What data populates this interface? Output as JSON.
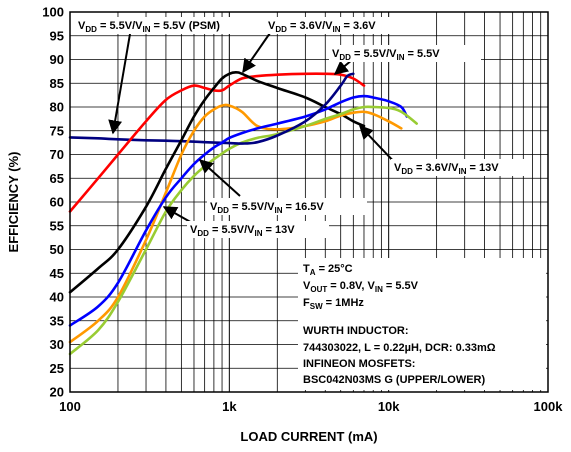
{
  "chart_data": {
    "type": "line",
    "xscale": "log",
    "xlabel": "LOAD CURRENT (mA)",
    "ylabel": "EFFICIENCY (%)",
    "xlim": [
      100,
      100000
    ],
    "ylim": [
      20,
      100
    ],
    "x_tick_labels": [
      "100",
      "1k",
      "10k",
      "100k"
    ],
    "y_ticks": [
      20,
      25,
      30,
      35,
      40,
      45,
      50,
      55,
      60,
      65,
      70,
      75,
      80,
      85,
      90,
      95,
      100
    ],
    "grid": true,
    "series": [
      {
        "label_key": "psm",
        "color": "#000080",
        "x": [
          100,
          150,
          200,
          300,
          400,
          500,
          700,
          1000
        ],
        "y": [
          73.6,
          73.4,
          73.2,
          73.0,
          72.9,
          72.8,
          72.6,
          72.4
        ]
      },
      {
        "label_key": "vin55",
        "color": "#ff0000",
        "x": [
          100,
          150,
          200,
          300,
          400,
          500,
          600,
          700,
          800,
          900,
          1000,
          1200,
          1500,
          2000,
          3000,
          4000,
          5000,
          6000,
          7000
        ],
        "y": [
          58,
          65,
          70,
          77,
          81.5,
          83.5,
          84.5,
          84.0,
          83.5,
          83.5,
          84.5,
          86.0,
          86.5,
          86.8,
          87.0,
          87.0,
          86.8,
          86.0,
          84.5
        ]
      },
      {
        "label_key": "vin36",
        "color": "#000000",
        "x": [
          100,
          150,
          200,
          300,
          400,
          500,
          600,
          700,
          800,
          900,
          1000,
          1100,
          1200,
          1500,
          2000,
          3000,
          4000,
          5000,
          6000,
          7000
        ],
        "y": [
          41,
          46,
          50,
          59,
          67,
          73,
          78,
          81.5,
          84,
          86,
          87,
          87.3,
          87.0,
          85.5,
          84,
          82,
          80,
          78.5,
          77,
          76
        ]
      },
      {
        "label_key": "vin5_5_36",
        "color": "#ff9900",
        "x": [
          100,
          150,
          200,
          300,
          400,
          500,
          600,
          700,
          800,
          900,
          1000,
          1200,
          1500,
          2000,
          3000,
          4000,
          5000,
          6000,
          7000,
          8000,
          10000,
          12000
        ],
        "y": [
          30.5,
          35,
          40,
          52,
          62,
          70,
          75,
          78,
          79.5,
          80.3,
          80.3,
          79,
          76,
          75.3,
          76,
          77,
          78.2,
          78.8,
          79.0,
          78.5,
          77,
          75.5
        ]
      },
      {
        "label_key": "vin165",
        "color": "#0000ff",
        "x": [
          100,
          150,
          200,
          300,
          400,
          500,
          600,
          700,
          800,
          900,
          1000,
          1200,
          1500,
          2000,
          3000,
          4000,
          5000,
          6000,
          7000,
          8000,
          10000,
          12000,
          13000
        ],
        "y": [
          34,
          38,
          43,
          54,
          61,
          65,
          68,
          70,
          71.5,
          72.5,
          73.5,
          74.5,
          75.5,
          76.5,
          78,
          79.5,
          81,
          82,
          82.3,
          82,
          81.2,
          80,
          78
        ]
      },
      {
        "label_key": "vin13",
        "color": "#99cc33",
        "x": [
          100,
          150,
          200,
          300,
          400,
          500,
          600,
          700,
          800,
          900,
          1000,
          1200,
          1500,
          2000,
          3000,
          4000,
          5000,
          6000,
          7000,
          8000,
          10000,
          12000,
          15000
        ],
        "y": [
          28,
          33,
          39,
          50,
          58,
          62.5,
          65.5,
          67.5,
          69,
          70.2,
          71.2,
          72.5,
          73.5,
          74.3,
          76,
          77.5,
          78.5,
          79.5,
          80,
          80,
          79.8,
          79,
          76.5
        ]
      },
      {
        "label_key": "psm_hi",
        "color": "#000080",
        "x": [
          1000,
          1200,
          1500,
          2000,
          3000,
          4000,
          5000,
          5500,
          6000
        ],
        "y": [
          72.4,
          72.3,
          72.6,
          74.0,
          77.0,
          80.5,
          84.5,
          86.5,
          87.0
        ]
      }
    ],
    "labels": {
      "psm": "V_DD = 5.5V/V_IN = 5.5V (PSM)",
      "vin36": "V_DD = 3.6V/V_IN = 3.6V",
      "vin55": "V_DD = 5.5V/V_IN = 5.5V",
      "vin5_5_36": "V_DD = 3.6V/V_IN = 13V",
      "vin165": "V_DD = 5.5V/V_IN = 16.5V",
      "vin13": "V_DD = 5.5V/V_IN = 13V"
    },
    "annotations": [
      {
        "key": "psm",
        "parts": [
          [
            "V",
            ""
          ],
          [
            "DD",
            "sub"
          ],
          [
            " = 5.5V/V",
            ""
          ],
          [
            "IN",
            "sub"
          ],
          [
            " = 5.5V (PSM)",
            ""
          ]
        ]
      },
      {
        "key": "vin36",
        "parts": [
          [
            "V",
            ""
          ],
          [
            "DD",
            "sub"
          ],
          [
            " = 3.6V/V",
            ""
          ],
          [
            "IN",
            "sub"
          ],
          [
            " = 3.6V",
            ""
          ]
        ]
      },
      {
        "key": "vin55",
        "parts": [
          [
            "V",
            ""
          ],
          [
            "DD",
            "sub"
          ],
          [
            " = 5.5V/V",
            ""
          ],
          [
            "IN",
            "sub"
          ],
          [
            " = 5.5V",
            ""
          ]
        ]
      },
      {
        "key": "vin36_13",
        "parts": [
          [
            "V",
            ""
          ],
          [
            "DD",
            "sub"
          ],
          [
            " = 3.6V/V",
            ""
          ],
          [
            "IN",
            "sub"
          ],
          [
            " = 13V",
            ""
          ]
        ]
      },
      {
        "key": "vin165",
        "parts": [
          [
            "V",
            ""
          ],
          [
            "DD",
            "sub"
          ],
          [
            " = 5.5V/V",
            ""
          ],
          [
            "IN",
            "sub"
          ],
          [
            " = 16.5V",
            ""
          ]
        ]
      },
      {
        "key": "vin13",
        "parts": [
          [
            "V",
            ""
          ],
          [
            "DD",
            "sub"
          ],
          [
            " = 5.5V/V",
            ""
          ],
          [
            "IN",
            "sub"
          ],
          [
            " = 13V",
            ""
          ]
        ]
      },
      {
        "key": "ta",
        "parts": [
          [
            "T",
            ""
          ],
          [
            "A",
            "sub"
          ],
          [
            " = 25°C",
            ""
          ]
        ]
      },
      {
        "key": "vout",
        "parts": [
          [
            "V",
            ""
          ],
          [
            "OUT",
            "sub"
          ],
          [
            " = 0.8V, V",
            ""
          ],
          [
            "IN",
            "sub"
          ],
          [
            " = 5.5V",
            ""
          ]
        ]
      },
      {
        "key": "fsw",
        "parts": [
          [
            "F",
            ""
          ],
          [
            "SW",
            "sub"
          ],
          [
            " = 1MHz",
            ""
          ]
        ]
      },
      {
        "key": "wurth",
        "parts": [
          [
            "WURTH INDUCTOR:",
            ""
          ]
        ]
      },
      {
        "key": "inductor",
        "parts": [
          [
            "744303022, L = 0.22µH, DCR: 0.33mΩ",
            ""
          ]
        ]
      },
      {
        "key": "infineon",
        "parts": [
          [
            "INFINEON MOSFETS:",
            ""
          ]
        ]
      },
      {
        "key": "mosfet",
        "parts": [
          [
            "BSC042N03MS G (UPPER/LOWER)",
            ""
          ]
        ]
      }
    ]
  }
}
